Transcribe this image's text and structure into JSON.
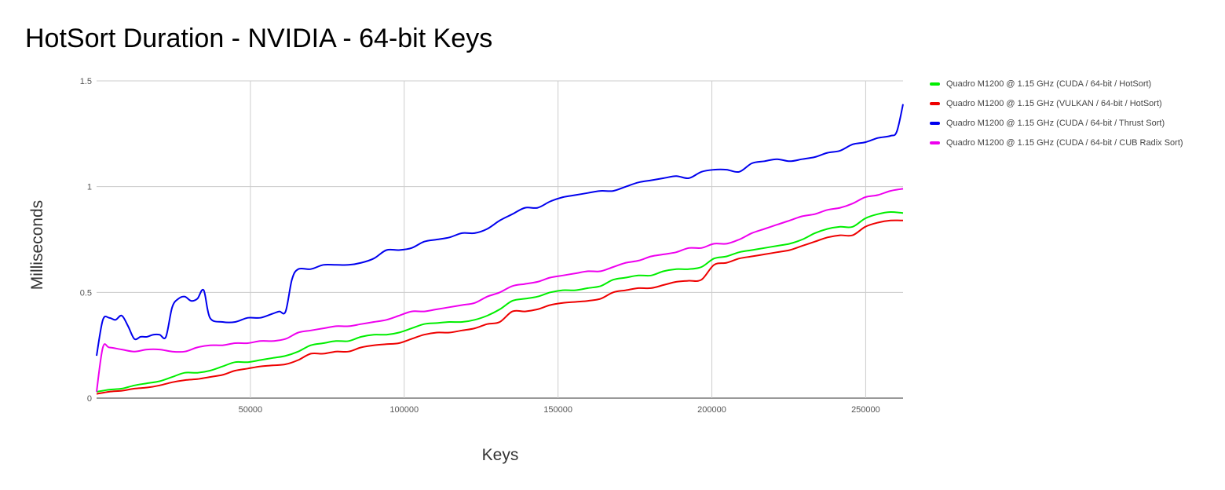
{
  "chart_data": {
    "type": "line",
    "title": "HotSort Duration - NVIDIA - 64-bit Keys",
    "xlabel": "Keys",
    "ylabel": "Milliseconds",
    "xlim": [
      0,
      262144
    ],
    "ylim": [
      0,
      1.5
    ],
    "x_ticks": [
      "50000",
      "100000",
      "150000",
      "200000",
      "250000"
    ],
    "y_ticks": [
      "0",
      "0.5",
      "1",
      "1.5"
    ],
    "grid": true,
    "legend_position": "right",
    "series": [
      {
        "name": "Quadro M1200 @ 1.15 GHz (CUDA / 64-bit / HotSort)",
        "color": "#00ee00",
        "points": [
          [
            0,
            0.03
          ],
          [
            4096,
            0.04
          ],
          [
            8192,
            0.045
          ],
          [
            12288,
            0.06
          ],
          [
            16384,
            0.07
          ],
          [
            20480,
            0.08
          ],
          [
            24576,
            0.1
          ],
          [
            28672,
            0.12
          ],
          [
            32768,
            0.12
          ],
          [
            36864,
            0.13
          ],
          [
            40960,
            0.15
          ],
          [
            45056,
            0.17
          ],
          [
            49152,
            0.17
          ],
          [
            53248,
            0.18
          ],
          [
            57344,
            0.19
          ],
          [
            61440,
            0.2
          ],
          [
            65536,
            0.22
          ],
          [
            69632,
            0.25
          ],
          [
            73728,
            0.26
          ],
          [
            77824,
            0.27
          ],
          [
            81920,
            0.27
          ],
          [
            86016,
            0.29
          ],
          [
            90112,
            0.3
          ],
          [
            94208,
            0.3
          ],
          [
            98304,
            0.31
          ],
          [
            102400,
            0.33
          ],
          [
            106496,
            0.35
          ],
          [
            110592,
            0.355
          ],
          [
            114688,
            0.36
          ],
          [
            118784,
            0.36
          ],
          [
            122880,
            0.37
          ],
          [
            126976,
            0.39
          ],
          [
            131072,
            0.42
          ],
          [
            135168,
            0.46
          ],
          [
            139264,
            0.47
          ],
          [
            143360,
            0.48
          ],
          [
            147456,
            0.5
          ],
          [
            151552,
            0.51
          ],
          [
            155648,
            0.51
          ],
          [
            159744,
            0.52
          ],
          [
            163840,
            0.53
          ],
          [
            167936,
            0.56
          ],
          [
            172032,
            0.57
          ],
          [
            176128,
            0.58
          ],
          [
            180224,
            0.58
          ],
          [
            184320,
            0.6
          ],
          [
            188416,
            0.61
          ],
          [
            192512,
            0.61
          ],
          [
            196608,
            0.62
          ],
          [
            200704,
            0.66
          ],
          [
            204800,
            0.67
          ],
          [
            208896,
            0.69
          ],
          [
            212992,
            0.7
          ],
          [
            217088,
            0.71
          ],
          [
            221184,
            0.72
          ],
          [
            225280,
            0.73
          ],
          [
            229376,
            0.75
          ],
          [
            233472,
            0.78
          ],
          [
            237568,
            0.8
          ],
          [
            241664,
            0.81
          ],
          [
            245760,
            0.81
          ],
          [
            249856,
            0.85
          ],
          [
            253952,
            0.87
          ],
          [
            258048,
            0.88
          ],
          [
            262144,
            0.875
          ]
        ]
      },
      {
        "name": "Quadro M1200 @ 1.15 GHz (VULKAN / 64-bit / HotSort)",
        "color": "#ee0000",
        "points": [
          [
            0,
            0.02
          ],
          [
            4096,
            0.03
          ],
          [
            8192,
            0.035
          ],
          [
            12288,
            0.045
          ],
          [
            16384,
            0.05
          ],
          [
            20480,
            0.06
          ],
          [
            24576,
            0.075
          ],
          [
            28672,
            0.085
          ],
          [
            32768,
            0.09
          ],
          [
            36864,
            0.1
          ],
          [
            40960,
            0.11
          ],
          [
            45056,
            0.13
          ],
          [
            49152,
            0.14
          ],
          [
            53248,
            0.15
          ],
          [
            57344,
            0.155
          ],
          [
            61440,
            0.16
          ],
          [
            65536,
            0.18
          ],
          [
            69632,
            0.21
          ],
          [
            73728,
            0.21
          ],
          [
            77824,
            0.22
          ],
          [
            81920,
            0.22
          ],
          [
            86016,
            0.24
          ],
          [
            90112,
            0.25
          ],
          [
            94208,
            0.255
          ],
          [
            98304,
            0.26
          ],
          [
            102400,
            0.28
          ],
          [
            106496,
            0.3
          ],
          [
            110592,
            0.31
          ],
          [
            114688,
            0.31
          ],
          [
            118784,
            0.32
          ],
          [
            122880,
            0.33
          ],
          [
            126976,
            0.35
          ],
          [
            131072,
            0.36
          ],
          [
            135168,
            0.41
          ],
          [
            139264,
            0.41
          ],
          [
            143360,
            0.42
          ],
          [
            147456,
            0.44
          ],
          [
            151552,
            0.45
          ],
          [
            155648,
            0.455
          ],
          [
            159744,
            0.46
          ],
          [
            163840,
            0.47
          ],
          [
            167936,
            0.5
          ],
          [
            172032,
            0.51
          ],
          [
            176128,
            0.52
          ],
          [
            180224,
            0.52
          ],
          [
            184320,
            0.535
          ],
          [
            188416,
            0.55
          ],
          [
            192512,
            0.555
          ],
          [
            196608,
            0.56
          ],
          [
            200704,
            0.63
          ],
          [
            204800,
            0.64
          ],
          [
            208896,
            0.66
          ],
          [
            212992,
            0.67
          ],
          [
            217088,
            0.68
          ],
          [
            221184,
            0.69
          ],
          [
            225280,
            0.7
          ],
          [
            229376,
            0.72
          ],
          [
            233472,
            0.74
          ],
          [
            237568,
            0.76
          ],
          [
            241664,
            0.77
          ],
          [
            245760,
            0.77
          ],
          [
            249856,
            0.81
          ],
          [
            253952,
            0.83
          ],
          [
            258048,
            0.84
          ],
          [
            262144,
            0.84
          ]
        ]
      },
      {
        "name": "Quadro M1200 @ 1.15 GHz (CUDA / 64-bit / Thrust Sort)",
        "color": "#0000ee",
        "points": [
          [
            0,
            0.2
          ],
          [
            2048,
            0.37
          ],
          [
            4096,
            0.38
          ],
          [
            6144,
            0.37
          ],
          [
            8192,
            0.39
          ],
          [
            10240,
            0.34
          ],
          [
            12288,
            0.28
          ],
          [
            14336,
            0.29
          ],
          [
            16384,
            0.29
          ],
          [
            18432,
            0.3
          ],
          [
            20480,
            0.3
          ],
          [
            22528,
            0.29
          ],
          [
            24576,
            0.43
          ],
          [
            26624,
            0.47
          ],
          [
            28672,
            0.48
          ],
          [
            30720,
            0.46
          ],
          [
            32768,
            0.47
          ],
          [
            34816,
            0.51
          ],
          [
            36864,
            0.38
          ],
          [
            40960,
            0.36
          ],
          [
            45056,
            0.36
          ],
          [
            49152,
            0.38
          ],
          [
            53248,
            0.38
          ],
          [
            57344,
            0.4
          ],
          [
            59392,
            0.41
          ],
          [
            61440,
            0.41
          ],
          [
            63488,
            0.56
          ],
          [
            65536,
            0.61
          ],
          [
            69632,
            0.61
          ],
          [
            73728,
            0.63
          ],
          [
            77824,
            0.63
          ],
          [
            81920,
            0.63
          ],
          [
            86016,
            0.64
          ],
          [
            90112,
            0.66
          ],
          [
            94208,
            0.7
          ],
          [
            98304,
            0.7
          ],
          [
            102400,
            0.71
          ],
          [
            106496,
            0.74
          ],
          [
            110592,
            0.75
          ],
          [
            114688,
            0.76
          ],
          [
            118784,
            0.78
          ],
          [
            122880,
            0.78
          ],
          [
            126976,
            0.8
          ],
          [
            131072,
            0.84
          ],
          [
            135168,
            0.87
          ],
          [
            139264,
            0.9
          ],
          [
            143360,
            0.9
          ],
          [
            147456,
            0.93
          ],
          [
            151552,
            0.95
          ],
          [
            155648,
            0.96
          ],
          [
            159744,
            0.97
          ],
          [
            163840,
            0.98
          ],
          [
            167936,
            0.98
          ],
          [
            172032,
            1.0
          ],
          [
            176128,
            1.02
          ],
          [
            180224,
            1.03
          ],
          [
            184320,
            1.04
          ],
          [
            188416,
            1.05
          ],
          [
            192512,
            1.04
          ],
          [
            196608,
            1.07
          ],
          [
            200704,
            1.08
          ],
          [
            204800,
            1.08
          ],
          [
            208896,
            1.07
          ],
          [
            212992,
            1.11
          ],
          [
            217088,
            1.12
          ],
          [
            221184,
            1.13
          ],
          [
            225280,
            1.12
          ],
          [
            229376,
            1.13
          ],
          [
            233472,
            1.14
          ],
          [
            237568,
            1.16
          ],
          [
            241664,
            1.17
          ],
          [
            245760,
            1.2
          ],
          [
            249856,
            1.21
          ],
          [
            253952,
            1.23
          ],
          [
            258048,
            1.24
          ],
          [
            260096,
            1.26
          ],
          [
            262144,
            1.39
          ]
        ]
      },
      {
        "name": "Quadro M1200 @ 1.15 GHz (CUDA / 64-bit / CUB Radix Sort)",
        "color": "#ee00ee",
        "points": [
          [
            0,
            0.03
          ],
          [
            2048,
            0.24
          ],
          [
            4096,
            0.24
          ],
          [
            8192,
            0.23
          ],
          [
            12288,
            0.22
          ],
          [
            16384,
            0.23
          ],
          [
            20480,
            0.23
          ],
          [
            24576,
            0.22
          ],
          [
            28672,
            0.22
          ],
          [
            32768,
            0.24
          ],
          [
            36864,
            0.25
          ],
          [
            40960,
            0.25
          ],
          [
            45056,
            0.26
          ],
          [
            49152,
            0.26
          ],
          [
            53248,
            0.27
          ],
          [
            57344,
            0.27
          ],
          [
            61440,
            0.28
          ],
          [
            65536,
            0.31
          ],
          [
            69632,
            0.32
          ],
          [
            73728,
            0.33
          ],
          [
            77824,
            0.34
          ],
          [
            81920,
            0.34
          ],
          [
            86016,
            0.35
          ],
          [
            90112,
            0.36
          ],
          [
            94208,
            0.37
          ],
          [
            98304,
            0.39
          ],
          [
            102400,
            0.41
          ],
          [
            106496,
            0.41
          ],
          [
            110592,
            0.42
          ],
          [
            114688,
            0.43
          ],
          [
            118784,
            0.44
          ],
          [
            122880,
            0.45
          ],
          [
            126976,
            0.48
          ],
          [
            131072,
            0.5
          ],
          [
            135168,
            0.53
          ],
          [
            139264,
            0.54
          ],
          [
            143360,
            0.55
          ],
          [
            147456,
            0.57
          ],
          [
            151552,
            0.58
          ],
          [
            155648,
            0.59
          ],
          [
            159744,
            0.6
          ],
          [
            163840,
            0.6
          ],
          [
            167936,
            0.62
          ],
          [
            172032,
            0.64
          ],
          [
            176128,
            0.65
          ],
          [
            180224,
            0.67
          ],
          [
            184320,
            0.68
          ],
          [
            188416,
            0.69
          ],
          [
            192512,
            0.71
          ],
          [
            196608,
            0.71
          ],
          [
            200704,
            0.73
          ],
          [
            204800,
            0.73
          ],
          [
            208896,
            0.75
          ],
          [
            212992,
            0.78
          ],
          [
            217088,
            0.8
          ],
          [
            221184,
            0.82
          ],
          [
            225280,
            0.84
          ],
          [
            229376,
            0.86
          ],
          [
            233472,
            0.87
          ],
          [
            237568,
            0.89
          ],
          [
            241664,
            0.9
          ],
          [
            245760,
            0.92
          ],
          [
            249856,
            0.95
          ],
          [
            253952,
            0.96
          ],
          [
            258048,
            0.98
          ],
          [
            262144,
            0.99
          ]
        ]
      }
    ]
  }
}
